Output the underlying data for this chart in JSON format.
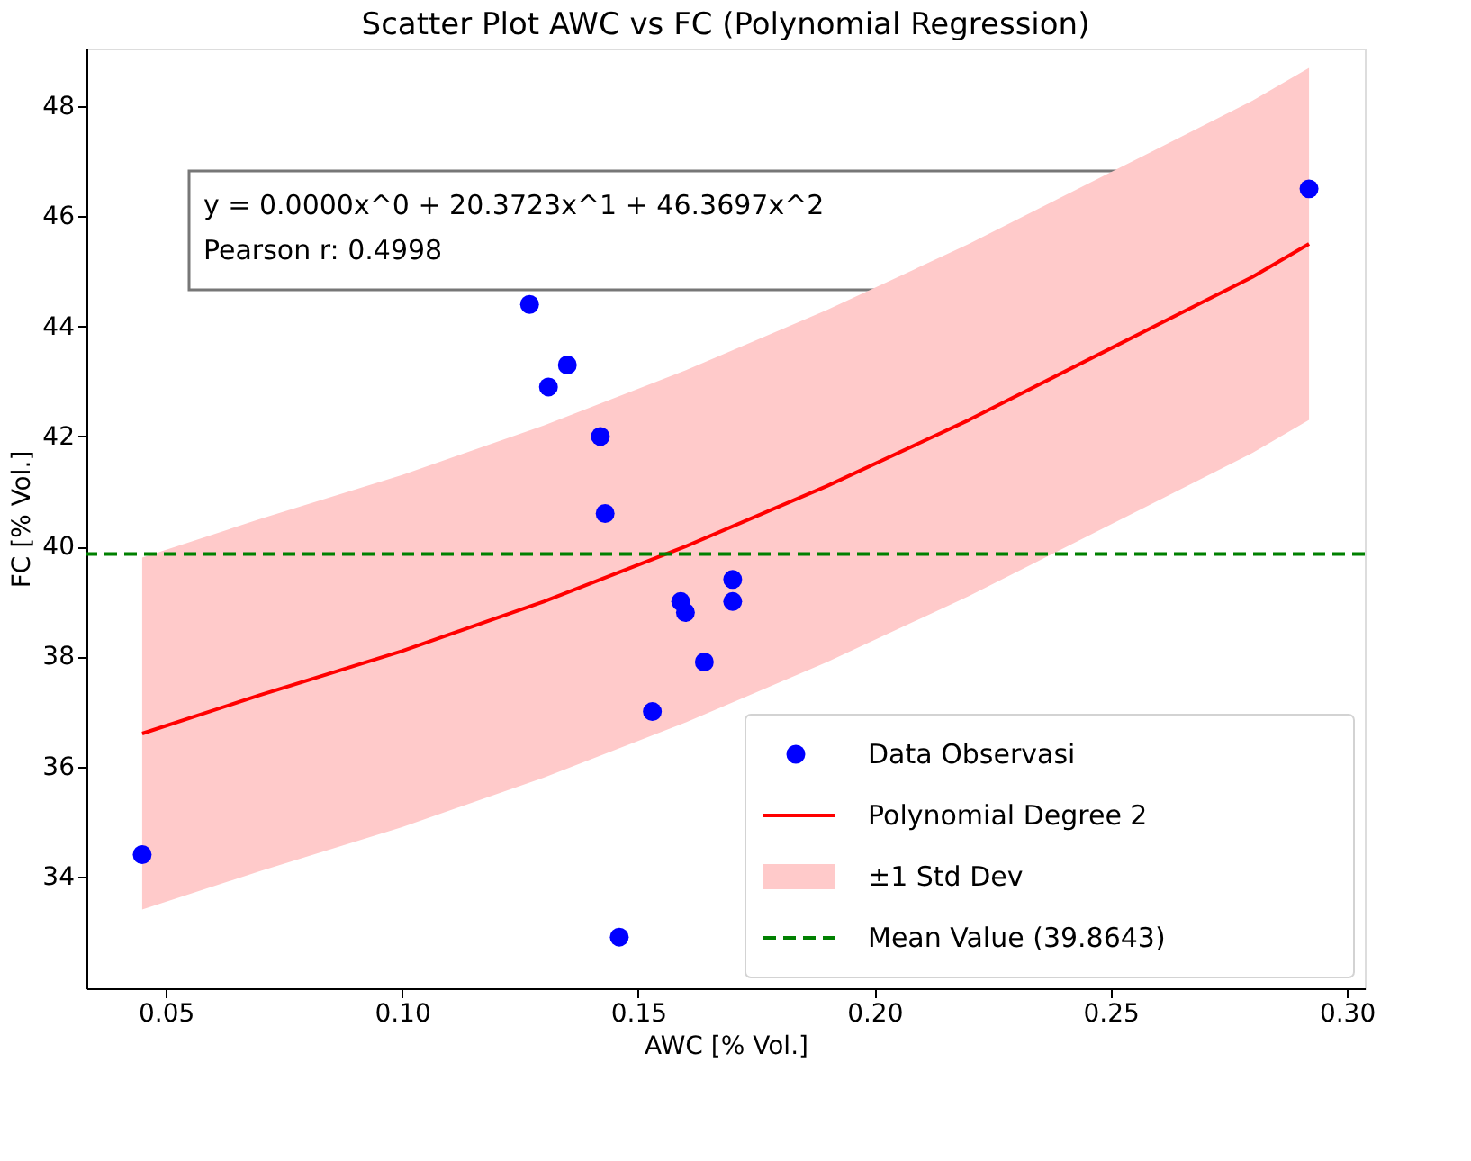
{
  "chart_data": {
    "type": "scatter",
    "title": "Scatter Plot AWC vs FC (Polynomial Regression)",
    "xlabel": "AWC [% Vol.]",
    "ylabel": "FC [% Vol.]",
    "xlim": [
      0.0332,
      0.3038
    ],
    "ylim": [
      31.97,
      49.05
    ],
    "xticks": [
      0.05,
      {
        "value": 0.1,
        "label": "0.10"
      },
      0.15,
      {
        "value": 0.2,
        "label": "0.20"
      },
      0.25,
      {
        "value": 0.3,
        "label": "0.30"
      }
    ],
    "yticks": [
      34,
      36,
      38,
      40,
      42,
      44,
      46,
      48
    ],
    "grid": false,
    "legend": "bottom right",
    "series": [
      {
        "name": "Data Observasi",
        "marker": "circle",
        "color": "#0000ff",
        "x": [
          0.045,
          0.127,
          0.135,
          0.131,
          0.142,
          0.143,
          0.159,
          0.16,
          0.17,
          0.17,
          0.164,
          0.153,
          0.146,
          0.292
        ],
        "values": [
          34.4,
          44.4,
          43.3,
          42.9,
          42.0,
          40.6,
          39.0,
          38.8,
          39.4,
          39.0,
          37.9,
          37.0,
          32.9,
          46.5
        ]
      },
      {
        "name": "Polynomial Degree 2",
        "type": "line",
        "marker": "none",
        "color": "#ff0000",
        "line_style": "solid",
        "x": [
          0.045,
          0.07,
          0.1,
          0.13,
          0.16,
          0.19,
          0.22,
          0.25,
          0.28,
          0.292
        ],
        "values": [
          36.6,
          37.3,
          38.1,
          39.0,
          40.0,
          41.1,
          42.3,
          43.6,
          44.9,
          45.5
        ],
        "lower": [
          33.4,
          34.1,
          34.9,
          35.8,
          36.8,
          37.9,
          39.1,
          40.4,
          41.7,
          42.3
        ],
        "upper": [
          39.8,
          40.5,
          41.3,
          42.2,
          43.2,
          44.3,
          45.5,
          46.8,
          48.1,
          48.7
        ]
      }
    ],
    "ref_lines": [
      {
        "axis": "y",
        "value": 39.8643,
        "label": "Mean Value (39.8643)",
        "color": "#008000",
        "line_style": "dashed"
      }
    ],
    "annotations": [
      "y = 0.0000x^0 + 20.3723x^1 + 46.3697x^2",
      "Pearson r: 0.4998",
      "±1 Std Dev"
    ]
  }
}
